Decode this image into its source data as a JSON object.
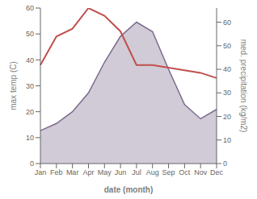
{
  "chart_data": {
    "type": "line",
    "xlabel": "date (month)",
    "ylabel": "max temp (C)",
    "y2label": "med. precipitation (kg/m2)",
    "categories": [
      "Jan",
      "Feb",
      "Mar",
      "Apr",
      "May",
      "Jun",
      "Jul",
      "Aug",
      "Sep",
      "Oct",
      "Nov",
      "Dec"
    ],
    "series": [
      {
        "type": "area",
        "axis": "y2",
        "color": "#7b6b8d",
        "values": [
          14,
          17,
          22,
          30,
          43,
          54,
          60,
          56,
          40,
          25,
          19,
          23
        ]
      },
      {
        "type": "line",
        "color": "#c0504d",
        "values": [
          38,
          49,
          52,
          60,
          57,
          51,
          38,
          38,
          37,
          36,
          35,
          33
        ]
      }
    ],
    "ylim": [
      0,
      60
    ],
    "yticks": [
      0,
      10,
      20,
      30,
      40,
      50,
      60
    ],
    "y2lim": [
      0,
      66
    ],
    "y2ticks": [
      0,
      10,
      20,
      30,
      40,
      50,
      60
    ]
  }
}
